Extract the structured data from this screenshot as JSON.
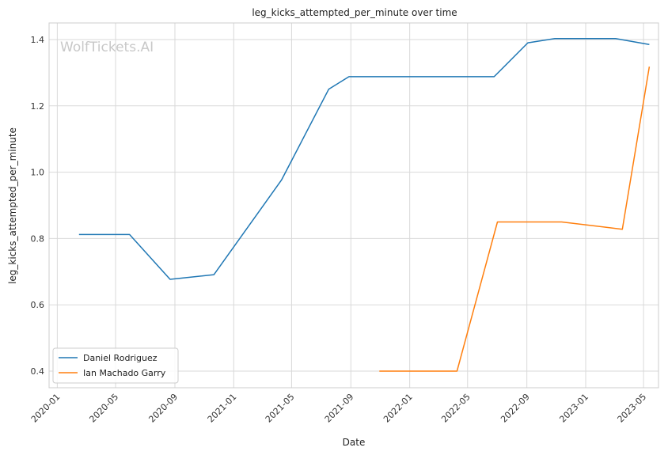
{
  "chart_data": {
    "type": "line",
    "title": "leg_kicks_attempted_per_minute over time",
    "xlabel": "Date",
    "ylabel": "leg_kicks_attempted_per_minute",
    "watermark": "WolfTickets.AI",
    "xlim": [
      "2019-12-15",
      "2023-06-01"
    ],
    "ylim": [
      0.35,
      1.45
    ],
    "x_ticks": [
      "2020-01",
      "2020-05",
      "2020-09",
      "2021-01",
      "2021-05",
      "2021-09",
      "2022-01",
      "2022-05",
      "2022-09",
      "2023-01",
      "2023-05"
    ],
    "y_ticks": [
      0.4,
      0.6,
      0.8,
      1.0,
      1.2,
      1.4
    ],
    "y_tick_labels": [
      "0.4",
      "0.6",
      "0.8",
      "1.0",
      "1.2",
      "1.4"
    ],
    "grid": true,
    "legend_position": "bottom-left",
    "series": [
      {
        "name": "Daniel Rodriguez",
        "color": "#1f77b4",
        "x": [
          "2020-02-15",
          "2020-05-30",
          "2020-08-22",
          "2020-11-21",
          "2021-04-10",
          "2021-07-17",
          "2021-08-28",
          "2022-06-25",
          "2022-09-03",
          "2022-10-29",
          "2023-03-04",
          "2023-05-13"
        ],
        "values": [
          0.812,
          0.812,
          0.677,
          0.691,
          0.976,
          1.25,
          1.288,
          1.288,
          1.39,
          1.403,
          1.403,
          1.385
        ]
      },
      {
        "name": "Ian Machado Garry",
        "color": "#ff7f0e",
        "x": [
          "2021-10-30",
          "2022-04-09",
          "2022-07-02",
          "2022-11-12",
          "2023-03-18",
          "2023-05-13"
        ],
        "values": [
          0.4,
          0.4,
          0.85,
          0.85,
          0.828,
          1.318
        ]
      }
    ]
  }
}
